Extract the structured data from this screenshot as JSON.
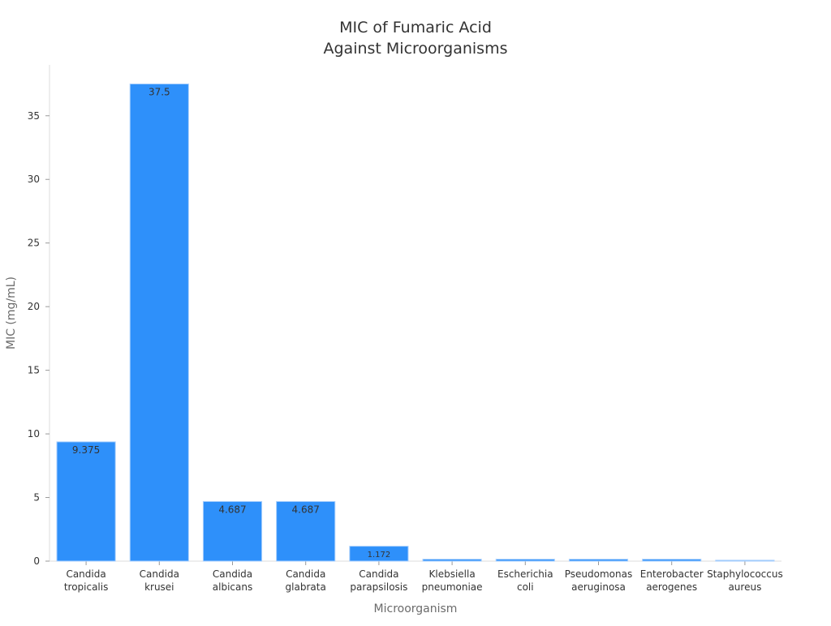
{
  "chart_data": {
    "type": "bar",
    "title": "MIC of Fumaric Acid\nAgainst Microorganisms",
    "xlabel": "Microorganism",
    "ylabel": "MIC (mg/mL)",
    "categories": [
      "Candida\ntropicalis",
      "Candida\nkrusei",
      "Candida\nalbicans",
      "Candida\nglabrata",
      "Candida\nparapsilosis",
      "Klebsiella\npneumoniae",
      "Escherichia\ncoli",
      "Pseudomonas\naeruginosa",
      "Enterobacter\naerogenes",
      "Staphylococcus\naureus"
    ],
    "values": [
      9.375,
      37.5,
      4.687,
      4.687,
      1.172,
      0.15,
      0.15,
      0.15,
      0.15,
      0.07
    ],
    "data_labels": [
      "9.375",
      "37.5",
      "4.687",
      "4.687",
      "1.172",
      "",
      "",
      "",
      "",
      ""
    ],
    "ylim": [
      0,
      39
    ],
    "yticks": [
      0,
      5,
      10,
      15,
      20,
      25,
      30,
      35
    ],
    "bar_colors": [
      "#2e90fa",
      "#2e90fa",
      "#2e90fa",
      "#2e90fa",
      "#2e90fa",
      "#2e90fa",
      "#2e90fa",
      "#2e90fa",
      "#2e90fa",
      "#5aabfb"
    ],
    "grid": false,
    "legend": "none"
  }
}
